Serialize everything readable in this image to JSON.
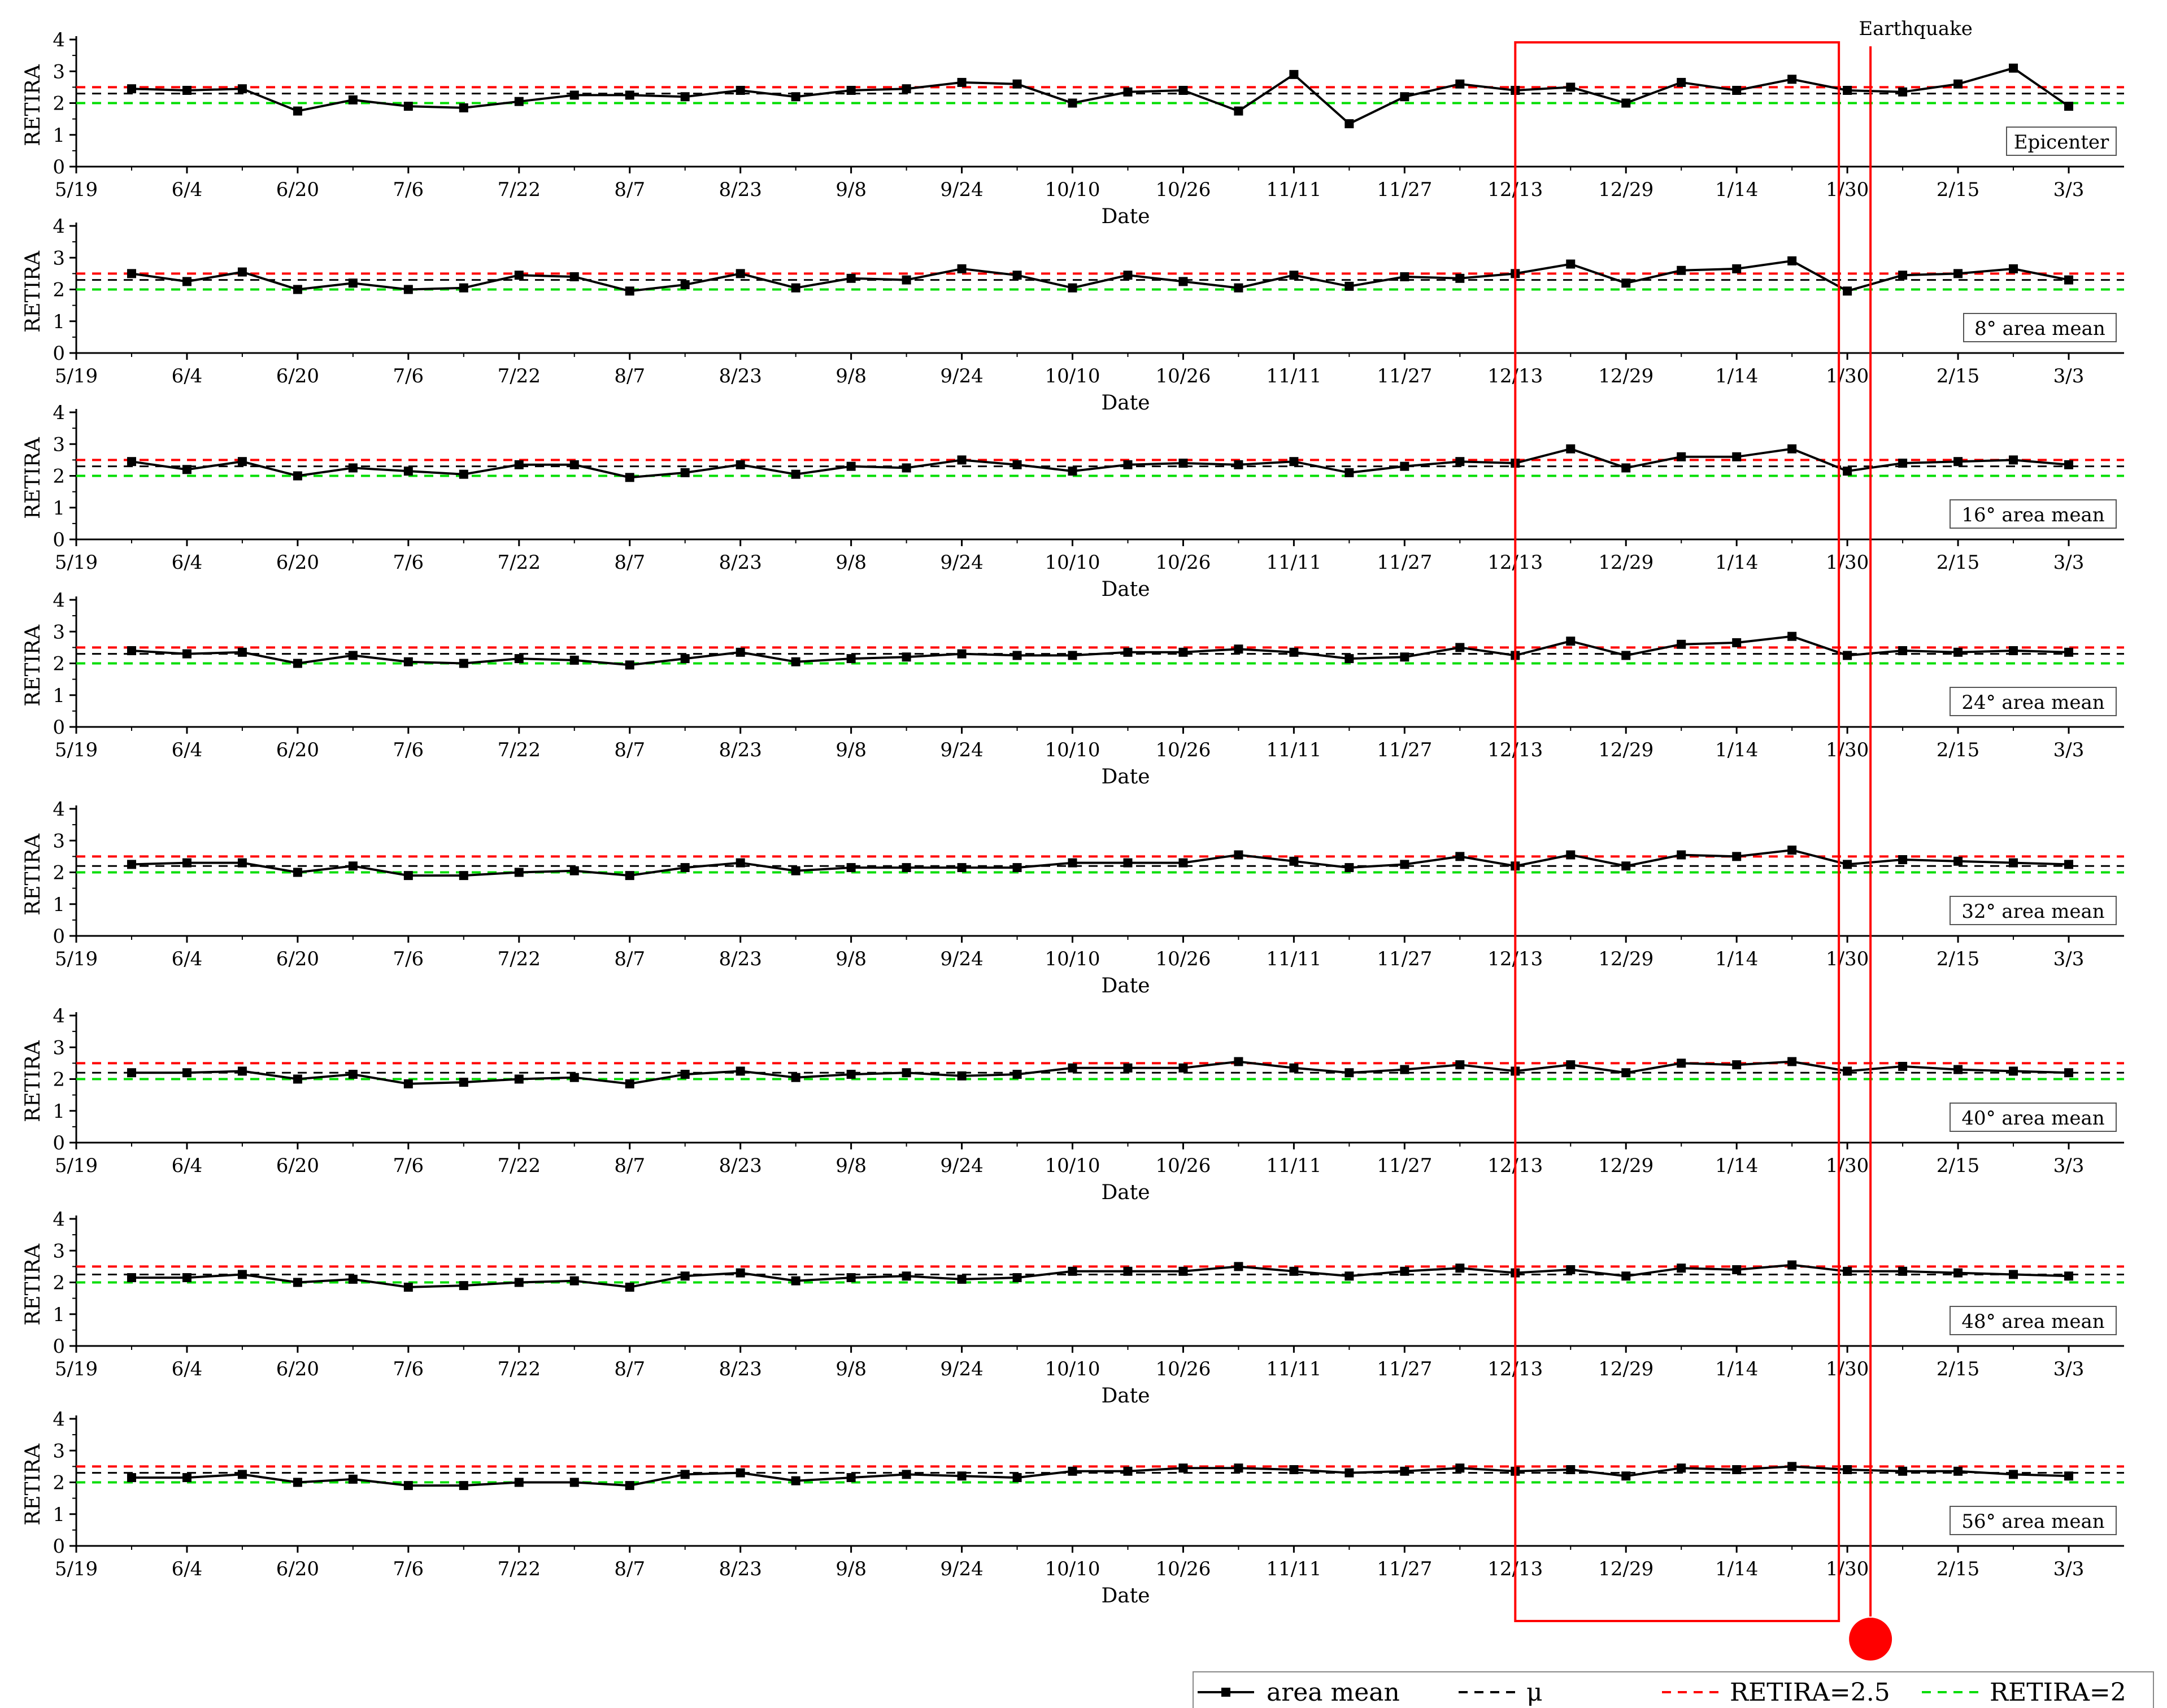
{
  "chart_data": {
    "type": "line",
    "x_tick_labels": [
      "5/19",
      "6/4",
      "6/20",
      "7/6",
      "7/22",
      "8/7",
      "8/23",
      "9/8",
      "9/24",
      "10/10",
      "10/26",
      "11/11",
      "11/27",
      "12/13",
      "12/29",
      "1/14",
      "1/30",
      "2/15",
      "3/3"
    ],
    "x": [
      "5/27",
      "6/4",
      "6/12",
      "6/20",
      "6/28",
      "7/6",
      "7/14",
      "7/22",
      "7/30",
      "8/7",
      "8/15",
      "8/23",
      "8/31",
      "9/8",
      "9/16",
      "9/24",
      "10/2",
      "10/10",
      "10/18",
      "10/26",
      "11/3",
      "11/11",
      "11/19",
      "11/27",
      "12/5",
      "12/13",
      "12/21",
      "12/29",
      "1/6",
      "1/14",
      "1/22",
      "1/30",
      "2/7",
      "2/15",
      "2/23",
      "3/3"
    ],
    "xlim": [
      "5/19",
      "3/11"
    ],
    "ylim": [
      0,
      4
    ],
    "y_ticks": [
      "0",
      "1",
      "2",
      "3",
      "4"
    ],
    "xlabel": "Date",
    "ylabel": "RETIRA",
    "earthquake": {
      "label": "Earthquake",
      "date": "2/3"
    },
    "highlight_window": [
      "12/13",
      "1/30"
    ],
    "colors": {
      "area_mean": "#000000",
      "mu": "#000000",
      "threshold_high": "#ff0000",
      "threshold_low": "#00dd00",
      "highlight": "#ff0000"
    },
    "legend": {
      "placement": "bottom-right",
      "entries": [
        "area mean",
        "μ",
        "RETIRA=2.5",
        "RETIRA=2"
      ]
    },
    "panels": [
      {
        "tag": "Epicenter",
        "mu": 2.3,
        "values": [
          2.45,
          2.4,
          2.45,
          1.75,
          2.1,
          1.9,
          1.85,
          2.05,
          2.25,
          2.25,
          2.2,
          2.4,
          2.2,
          2.4,
          2.45,
          2.65,
          2.6,
          2.0,
          2.35,
          2.4,
          1.75,
          2.9,
          1.35,
          2.2,
          2.6,
          2.4,
          2.5,
          2.0,
          2.65,
          2.4,
          2.75,
          2.4,
          2.35,
          2.6,
          3.1,
          1.9
        ]
      },
      {
        "tag": "8°  area mean",
        "mu": 2.3,
        "values": [
          2.5,
          2.25,
          2.55,
          2.0,
          2.2,
          2.0,
          2.05,
          2.45,
          2.4,
          1.95,
          2.15,
          2.5,
          2.05,
          2.35,
          2.3,
          2.65,
          2.45,
          2.05,
          2.45,
          2.25,
          2.05,
          2.45,
          2.1,
          2.4,
          2.35,
          2.5,
          2.8,
          2.2,
          2.6,
          2.65,
          2.9,
          1.95,
          2.45,
          2.5,
          2.65,
          2.3
        ]
      },
      {
        "tag": "16°  area mean",
        "mu": 2.3,
        "values": [
          2.45,
          2.2,
          2.45,
          2.0,
          2.25,
          2.15,
          2.05,
          2.35,
          2.35,
          1.95,
          2.1,
          2.35,
          2.05,
          2.3,
          2.25,
          2.5,
          2.35,
          2.15,
          2.35,
          2.4,
          2.35,
          2.45,
          2.1,
          2.3,
          2.45,
          2.4,
          2.85,
          2.25,
          2.6,
          2.6,
          2.85,
          2.15,
          2.4,
          2.45,
          2.5,
          2.35
        ]
      },
      {
        "tag": "24°  area mean",
        "mu": 2.3,
        "values": [
          2.4,
          2.3,
          2.35,
          2.0,
          2.25,
          2.05,
          2.0,
          2.15,
          2.1,
          1.95,
          2.15,
          2.35,
          2.05,
          2.15,
          2.2,
          2.3,
          2.25,
          2.25,
          2.35,
          2.35,
          2.45,
          2.35,
          2.15,
          2.2,
          2.5,
          2.25,
          2.7,
          2.25,
          2.6,
          2.65,
          2.85,
          2.25,
          2.4,
          2.35,
          2.4,
          2.35
        ]
      },
      {
        "tag": "32°  area mean",
        "mu": 2.2,
        "values": [
          2.25,
          2.3,
          2.3,
          2.0,
          2.2,
          1.9,
          1.9,
          2.0,
          2.05,
          1.9,
          2.15,
          2.3,
          2.05,
          2.15,
          2.15,
          2.15,
          2.15,
          2.3,
          2.3,
          2.3,
          2.55,
          2.35,
          2.15,
          2.25,
          2.5,
          2.2,
          2.55,
          2.2,
          2.55,
          2.5,
          2.7,
          2.25,
          2.4,
          2.35,
          2.3,
          2.25
        ]
      },
      {
        "tag": "40°  area mean",
        "mu": 2.2,
        "values": [
          2.2,
          2.2,
          2.25,
          2.0,
          2.15,
          1.85,
          1.9,
          2.0,
          2.05,
          1.85,
          2.15,
          2.25,
          2.05,
          2.15,
          2.2,
          2.1,
          2.15,
          2.35,
          2.35,
          2.35,
          2.55,
          2.35,
          2.2,
          2.3,
          2.45,
          2.25,
          2.45,
          2.2,
          2.5,
          2.45,
          2.55,
          2.25,
          2.4,
          2.3,
          2.25,
          2.2
        ]
      },
      {
        "tag": "48°  area mean",
        "mu": 2.25,
        "values": [
          2.15,
          2.15,
          2.25,
          2.0,
          2.1,
          1.85,
          1.9,
          2.0,
          2.05,
          1.85,
          2.2,
          2.3,
          2.05,
          2.15,
          2.2,
          2.1,
          2.15,
          2.35,
          2.35,
          2.35,
          2.5,
          2.35,
          2.2,
          2.35,
          2.45,
          2.3,
          2.4,
          2.2,
          2.45,
          2.4,
          2.55,
          2.35,
          2.35,
          2.3,
          2.25,
          2.2
        ]
      },
      {
        "tag": "56°  area mean",
        "mu": 2.3,
        "values": [
          2.15,
          2.15,
          2.25,
          2.0,
          2.1,
          1.9,
          1.9,
          2.0,
          2.0,
          1.9,
          2.25,
          2.3,
          2.05,
          2.15,
          2.25,
          2.2,
          2.15,
          2.35,
          2.35,
          2.45,
          2.45,
          2.4,
          2.3,
          2.35,
          2.45,
          2.35,
          2.4,
          2.2,
          2.45,
          2.4,
          2.5,
          2.4,
          2.35,
          2.35,
          2.25,
          2.2
        ]
      }
    ]
  }
}
